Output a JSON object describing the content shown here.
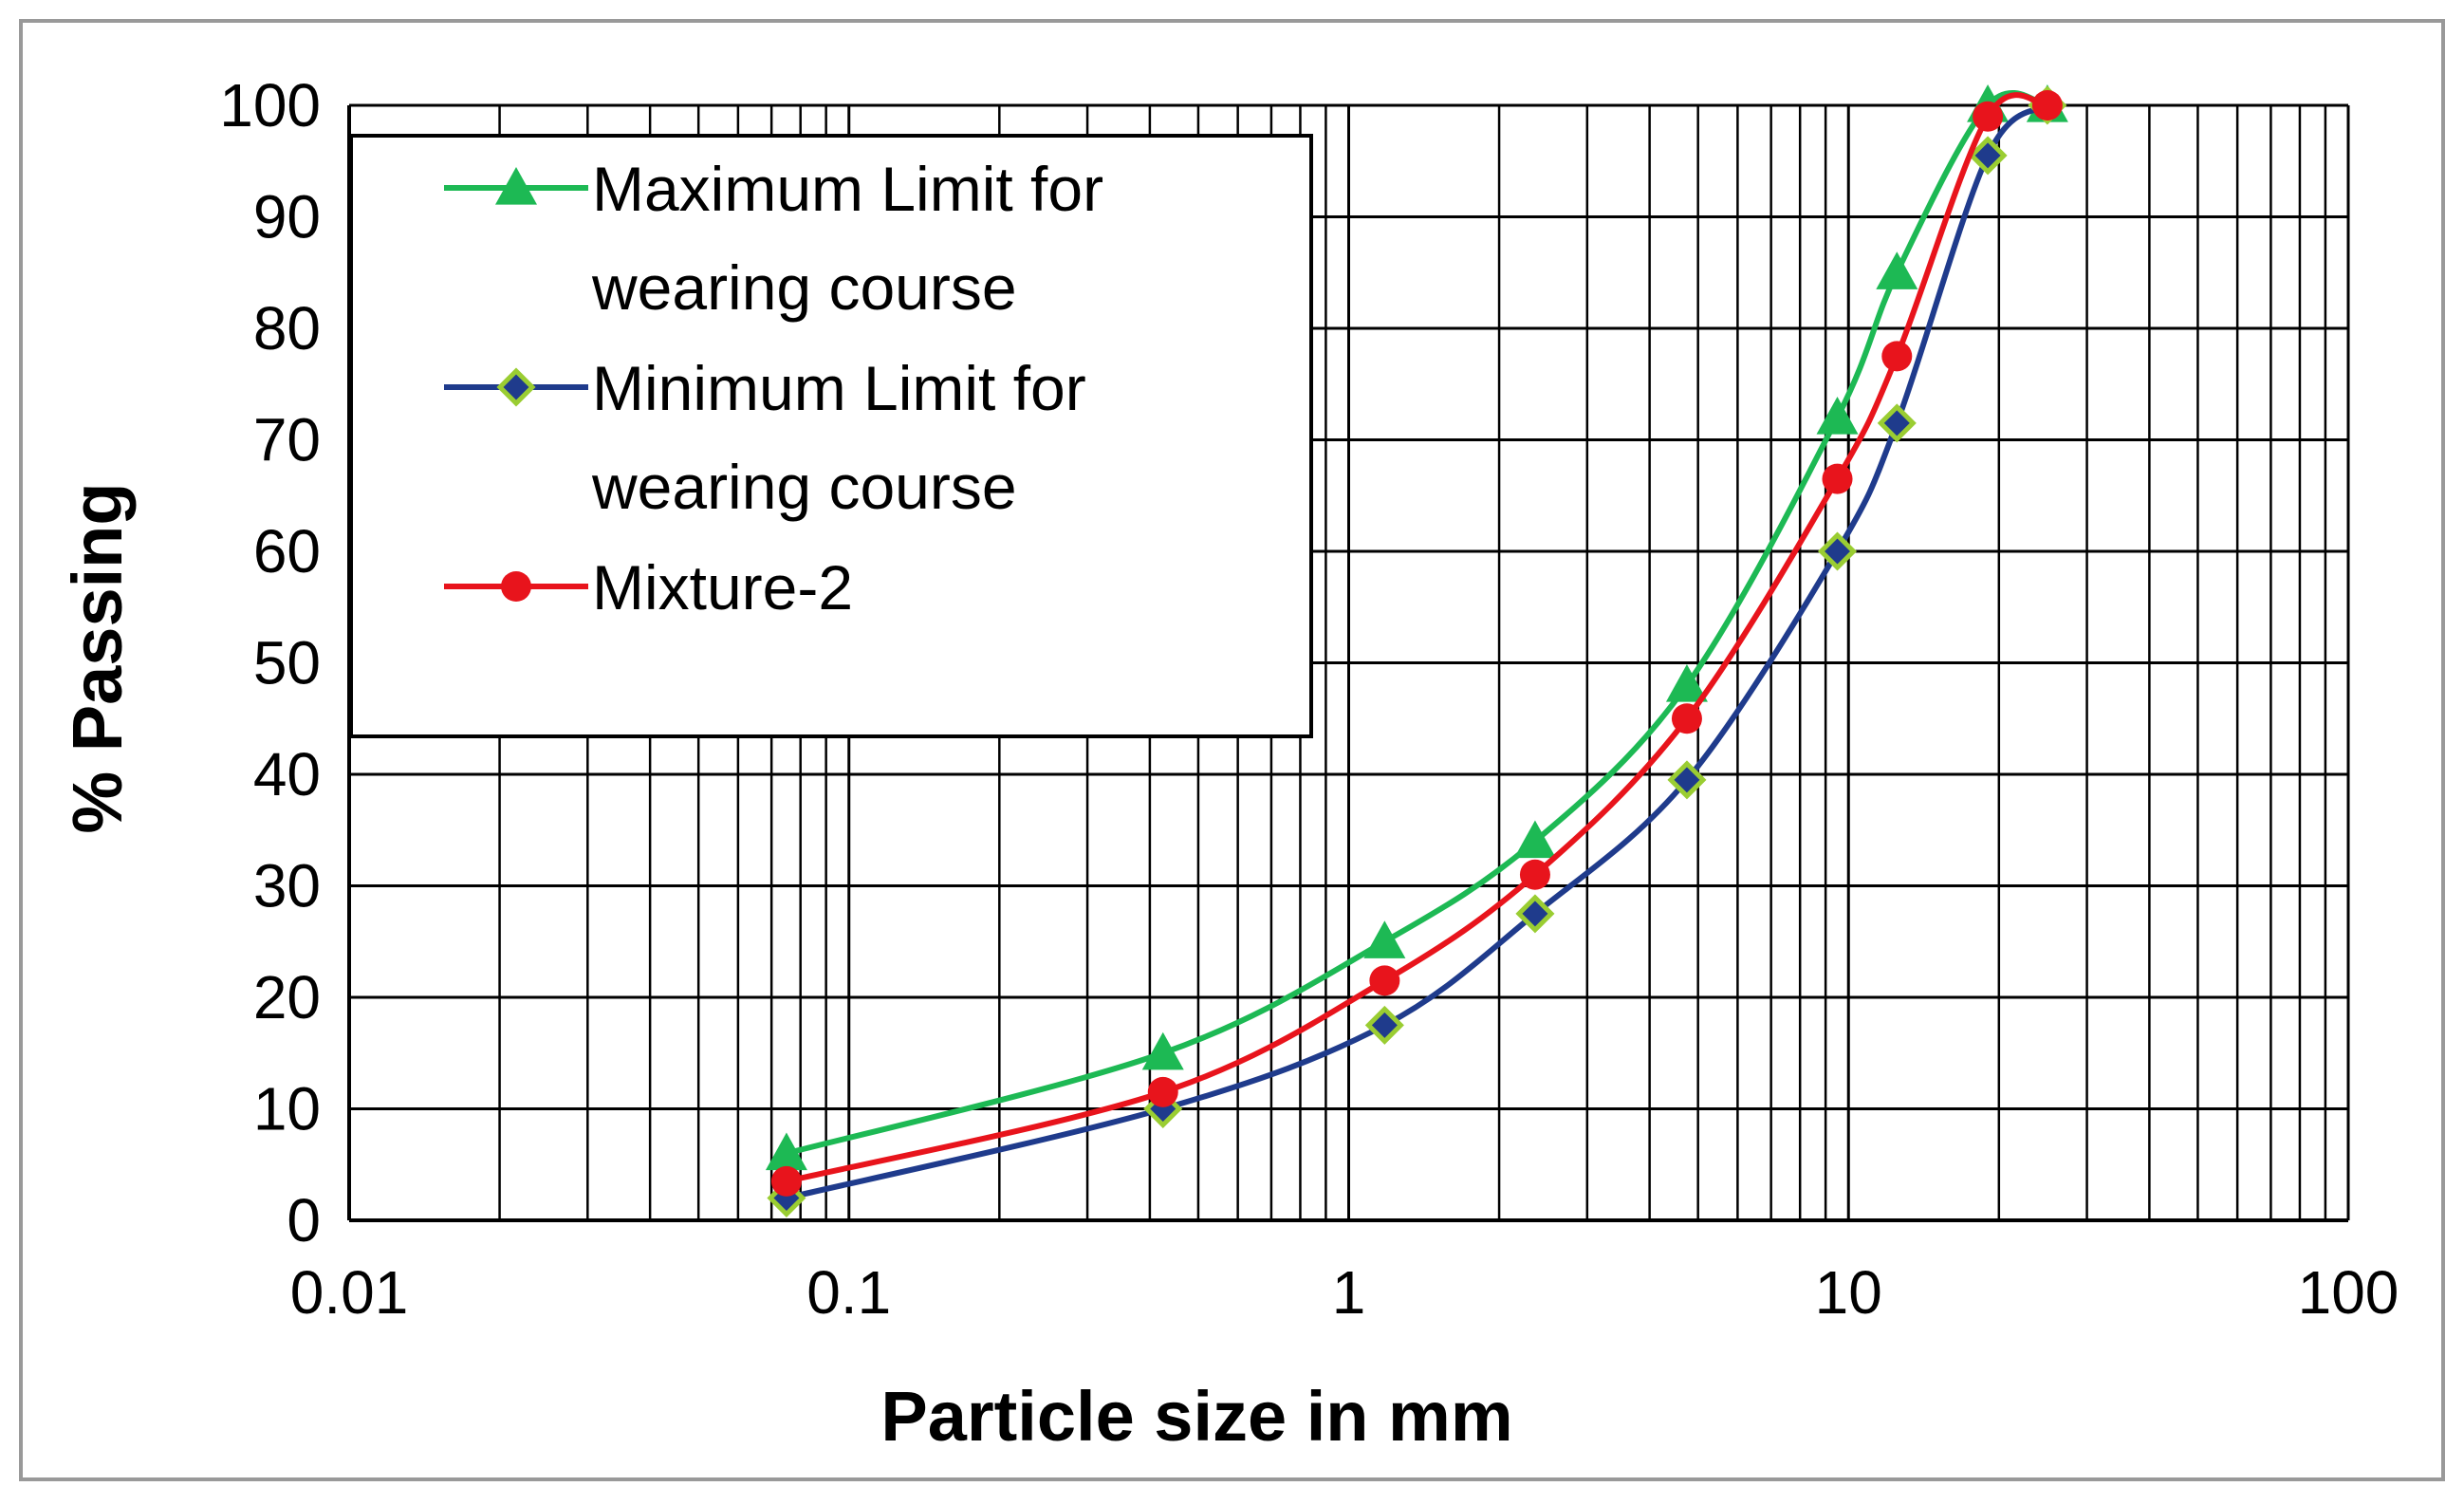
{
  "chart_data": {
    "type": "line",
    "title": "",
    "xlabel": "Particle  size in mm",
    "ylabel": "% Passing",
    "xscale": "log",
    "xlim": [
      0.01,
      100
    ],
    "ylim": [
      0,
      100
    ],
    "grid": true,
    "legend_position": "top-left",
    "x_ticks": [
      "0.01",
      "0.1",
      "1",
      "10",
      "100"
    ],
    "y_ticks": [
      "0",
      "10",
      "20",
      "30",
      "40",
      "50",
      "60",
      "70",
      "80",
      "90",
      "100"
    ],
    "series": [
      {
        "name": "Maximum Limit for wearing course",
        "legend_lines": [
          "Maximum Limit for",
          "wearing course"
        ],
        "marker": "triangle",
        "line_color": "#1db954",
        "marker_color": "#1db954",
        "x": [
          0.075,
          0.425,
          1.18,
          2.36,
          4.75,
          9.5,
          12.5,
          19,
          25
        ],
        "y": [
          6,
          15,
          25,
          34,
          48,
          72,
          85,
          100,
          100
        ]
      },
      {
        "name": "Minimum Limit for wearing course",
        "legend_lines": [
          "Minimum Limit for",
          "wearing course"
        ],
        "marker": "diamond",
        "line_color": "#1f3b8c",
        "marker_color": "#1f3b8c",
        "marker_edge": "#9acd32",
        "x": [
          0.075,
          0.425,
          1.18,
          2.36,
          4.75,
          9.5,
          12.5,
          19,
          25
        ],
        "y": [
          2,
          10,
          17.5,
          27.5,
          39.5,
          60,
          71.5,
          95.5,
          100
        ]
      },
      {
        "name": "Mixture-2",
        "legend_lines": [
          "Mixture-2"
        ],
        "marker": "circle",
        "line_color": "#e8141c",
        "marker_color": "#e8141c",
        "x": [
          0.075,
          0.425,
          1.18,
          2.36,
          4.75,
          9.5,
          12.5,
          19,
          25
        ],
        "y": [
          3.5,
          11.5,
          21.5,
          31,
          45,
          66.5,
          77.5,
          99,
          100
        ]
      }
    ]
  }
}
